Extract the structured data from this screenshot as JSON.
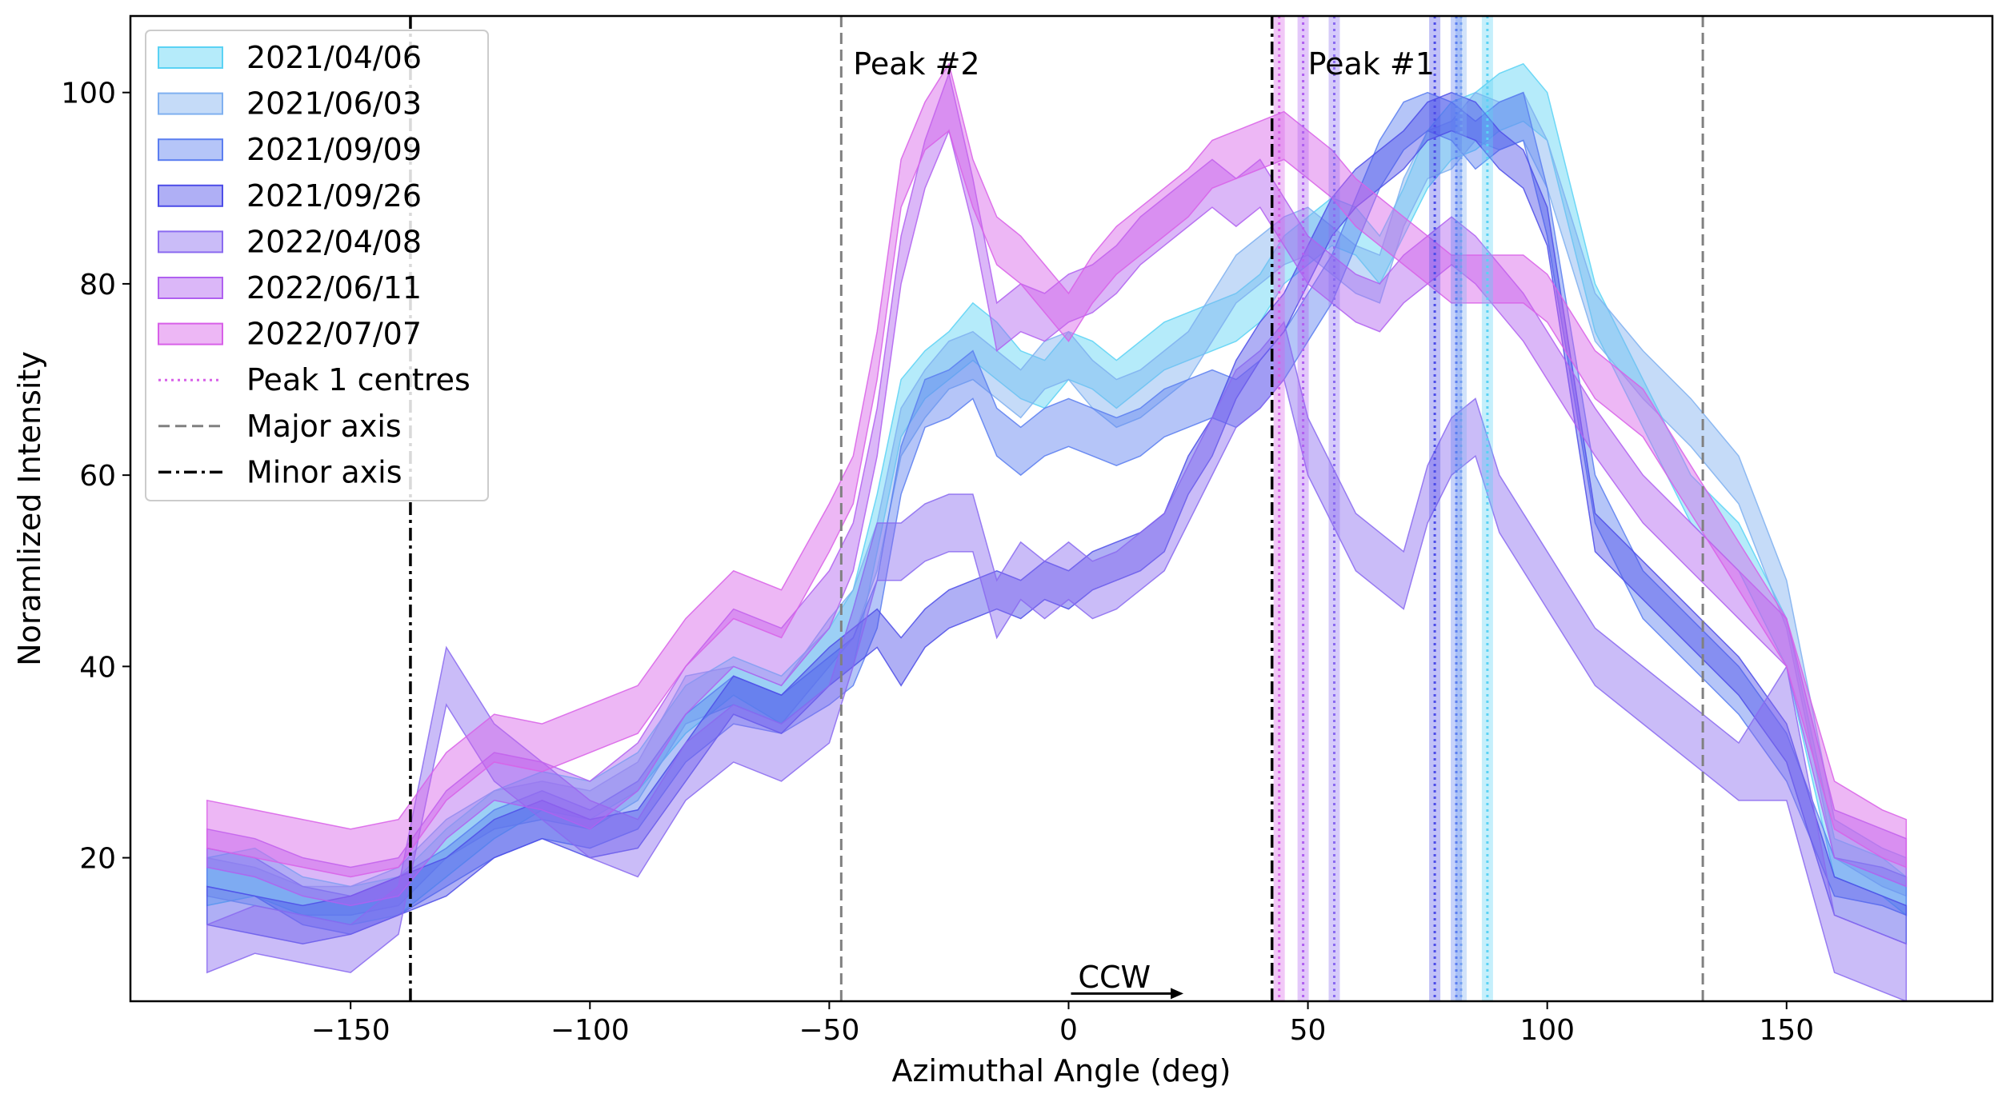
{
  "chart_data": {
    "type": "area",
    "title": "",
    "xlabel": "Azimuthal Angle (deg)",
    "ylabel": "Noramlized Intensity",
    "xlim": [
      -196,
      193
    ],
    "ylim": [
      5,
      108
    ],
    "xticks": [
      -150,
      -100,
      -50,
      0,
      50,
      100,
      150
    ],
    "yticks": [
      20,
      40,
      60,
      80,
      100
    ],
    "x": [
      -180,
      -170,
      -160,
      -150,
      -140,
      -130,
      -120,
      -110,
      -100,
      -90,
      -80,
      -70,
      -60,
      -50,
      -45,
      -40,
      -35,
      -30,
      -25,
      -20,
      -15,
      -10,
      -5,
      0,
      5,
      10,
      15,
      20,
      25,
      30,
      35,
      40,
      45,
      50,
      55,
      60,
      65,
      70,
      75,
      80,
      85,
      90,
      95,
      100,
      110,
      120,
      130,
      140,
      150,
      160,
      170,
      175
    ],
    "series": [
      {
        "name": "2021/04/06",
        "color": "#5ad2f4",
        "lower": [
          15,
          16,
          14,
          13,
          14,
          18,
          22,
          25,
          24,
          27,
          33,
          37,
          34,
          38,
          40,
          52,
          64,
          68,
          70,
          72,
          70,
          68,
          67,
          70,
          69,
          67,
          69,
          71,
          72,
          73,
          74,
          76,
          80,
          82,
          84,
          83,
          80,
          85,
          90,
          93,
          94,
          96,
          97,
          95,
          75,
          65,
          55,
          50,
          40,
          18,
          16,
          14
        ],
        "upper": [
          20,
          21,
          18,
          17,
          18,
          23,
          27,
          29,
          28,
          31,
          38,
          41,
          39,
          44,
          48,
          58,
          70,
          73,
          75,
          78,
          76,
          73,
          72,
          75,
          74,
          72,
          74,
          76,
          77,
          78,
          79,
          81,
          85,
          87,
          89,
          88,
          85,
          90,
          96,
          99,
          100,
          102,
          103,
          100,
          80,
          70,
          60,
          55,
          45,
          22,
          20,
          18
        ]
      },
      {
        "name": "2021/06/03",
        "color": "#7fb0f0",
        "lower": [
          16,
          15,
          14,
          14,
          15,
          20,
          23,
          24,
          23,
          26,
          34,
          36,
          34,
          40,
          43,
          50,
          62,
          66,
          69,
          70,
          68,
          66,
          69,
          70,
          67,
          65,
          66,
          68,
          70,
          74,
          78,
          80,
          82,
          83,
          81,
          79,
          78,
          86,
          91,
          92,
          95,
          94,
          95,
          90,
          74,
          68,
          63,
          57,
          44,
          20,
          17,
          16
        ],
        "upper": [
          20,
          19,
          17,
          17,
          19,
          24,
          27,
          28,
          27,
          30,
          39,
          40,
          38,
          45,
          48,
          55,
          67,
          71,
          74,
          75,
          73,
          71,
          74,
          75,
          72,
          70,
          71,
          73,
          75,
          79,
          83,
          85,
          87,
          88,
          86,
          84,
          83,
          91,
          96,
          97,
          100,
          99,
          100,
          95,
          79,
          73,
          68,
          62,
          49,
          24,
          21,
          20
        ]
      },
      {
        "name": "2021/09/09",
        "color": "#5b7ef0",
        "lower": [
          17,
          16,
          13,
          12,
          14,
          17,
          20,
          22,
          21,
          23,
          30,
          34,
          33,
          36,
          38,
          44,
          58,
          65,
          66,
          68,
          62,
          60,
          62,
          63,
          62,
          61,
          62,
          64,
          65,
          66,
          65,
          67,
          70,
          74,
          78,
          84,
          90,
          94,
          96,
          95,
          92,
          94,
          95,
          85,
          55,
          45,
          40,
          35,
          28,
          16,
          15,
          14
        ],
        "upper": [
          21,
          20,
          17,
          16,
          18,
          21,
          25,
          27,
          25,
          28,
          35,
          39,
          37,
          41,
          43,
          49,
          63,
          70,
          71,
          73,
          67,
          65,
          67,
          68,
          67,
          66,
          67,
          69,
          70,
          71,
          70,
          72,
          75,
          79,
          83,
          89,
          95,
          99,
          100,
          99,
          97,
          99,
          100,
          90,
          60,
          50,
          45,
          40,
          33,
          20,
          19,
          18
        ]
      },
      {
        "name": "2021/09/26",
        "color": "#4d4de8",
        "lower": [
          13,
          12,
          11,
          12,
          14,
          16,
          20,
          22,
          20,
          21,
          28,
          35,
          33,
          38,
          40,
          42,
          38,
          42,
          44,
          45,
          46,
          45,
          47,
          46,
          48,
          49,
          50,
          52,
          58,
          62,
          68,
          72,
          75,
          80,
          85,
          88,
          90,
          92,
          95,
          96,
          95,
          92,
          90,
          84,
          52,
          47,
          42,
          37,
          30,
          14,
          12,
          11
        ],
        "upper": [
          17,
          16,
          15,
          16,
          18,
          20,
          24,
          26,
          24,
          25,
          32,
          39,
          37,
          42,
          44,
          46,
          43,
          46,
          48,
          49,
          50,
          49,
          51,
          50,
          52,
          53,
          54,
          56,
          62,
          66,
          72,
          76,
          79,
          84,
          89,
          92,
          94,
          96,
          99,
          100,
          99,
          96,
          94,
          88,
          56,
          51,
          46,
          41,
          34,
          18,
          16,
          15
        ]
      },
      {
        "name": "2022/04/08",
        "color": "#8a6af0",
        "lower": [
          8,
          10,
          9,
          8,
          12,
          36,
          28,
          24,
          20,
          18,
          26,
          30,
          28,
          32,
          40,
          49,
          49,
          51,
          52,
          52,
          43,
          47,
          45,
          47,
          45,
          46,
          48,
          50,
          55,
          60,
          65,
          67,
          70,
          60,
          55,
          50,
          48,
          46,
          55,
          60,
          62,
          54,
          50,
          46,
          38,
          34,
          30,
          26,
          26,
          8,
          6,
          5
        ],
        "upper": [
          13,
          15,
          14,
          13,
          17,
          42,
          34,
          30,
          26,
          24,
          32,
          36,
          34,
          38,
          46,
          55,
          55,
          57,
          58,
          58,
          49,
          53,
          51,
          53,
          51,
          52,
          54,
          56,
          61,
          66,
          71,
          73,
          76,
          66,
          61,
          56,
          54,
          52,
          61,
          66,
          68,
          60,
          56,
          52,
          44,
          40,
          36,
          32,
          40,
          14,
          12,
          11
        ]
      },
      {
        "name": "2022/06/11",
        "color": "#b060f0",
        "lower": [
          19,
          18,
          16,
          15,
          16,
          22,
          26,
          25,
          23,
          27,
          35,
          40,
          38,
          44,
          50,
          62,
          80,
          90,
          96,
          86,
          73,
          75,
          74,
          76,
          77,
          79,
          82,
          84,
          86,
          88,
          86,
          88,
          84,
          80,
          78,
          76,
          75,
          78,
          80,
          82,
          80,
          77,
          74,
          70,
          62,
          55,
          50,
          45,
          40,
          20,
          18,
          17
        ],
        "upper": [
          23,
          22,
          20,
          19,
          20,
          27,
          31,
          30,
          28,
          32,
          40,
          46,
          44,
          50,
          55,
          67,
          85,
          95,
          102,
          91,
          78,
          80,
          79,
          81,
          82,
          84,
          87,
          89,
          91,
          93,
          91,
          93,
          89,
          85,
          83,
          81,
          80,
          83,
          85,
          87,
          85,
          82,
          79,
          75,
          67,
          60,
          55,
          50,
          45,
          25,
          23,
          22
        ]
      },
      {
        "name": "2022/07/07",
        "color": "#d860e8",
        "lower": [
          21,
          20,
          19,
          18,
          19,
          26,
          30,
          29,
          31,
          33,
          40,
          45,
          43,
          52,
          57,
          70,
          88,
          94,
          96,
          88,
          82,
          80,
          77,
          74,
          78,
          81,
          83,
          85,
          87,
          90,
          91,
          92,
          93,
          91,
          89,
          86,
          84,
          82,
          80,
          78,
          78,
          78,
          78,
          76,
          68,
          64,
          56,
          48,
          40,
          23,
          20,
          19
        ],
        "upper": [
          26,
          25,
          24,
          23,
          24,
          31,
          35,
          34,
          36,
          38,
          45,
          50,
          48,
          57,
          62,
          75,
          93,
          99,
          103,
          93,
          87,
          85,
          82,
          79,
          83,
          86,
          88,
          90,
          92,
          95,
          96,
          97,
          98,
          96,
          94,
          91,
          89,
          87,
          85,
          83,
          83,
          83,
          83,
          81,
          73,
          69,
          61,
          53,
          45,
          28,
          25,
          24
        ]
      }
    ],
    "peak1_centres": [
      {
        "date": "2021/04/06",
        "x": 87.5,
        "color": "#5ad2f4"
      },
      {
        "date": "2021/06/03",
        "x": 82,
        "color": "#7fb0f0"
      },
      {
        "date": "2021/09/09",
        "x": 81,
        "color": "#5b7ef0"
      },
      {
        "date": "2021/09/26",
        "x": 76.5,
        "color": "#4d4de8"
      },
      {
        "date": "2022/04/08",
        "x": 55.5,
        "color": "#8a6af0"
      },
      {
        "date": "2022/06/11",
        "x": 49,
        "color": "#b060f0"
      },
      {
        "date": "2022/07/07",
        "x": 44,
        "color": "#d860e8"
      }
    ],
    "major_axis": [
      -47.5,
      132.5
    ],
    "minor_axis": [
      -137.5,
      42.5
    ],
    "annotations": [
      {
        "text": "Peak #2",
        "x": -45,
        "y": 103
      },
      {
        "text": "Peak #1",
        "x": 50,
        "y": 103
      },
      {
        "text": "CCW",
        "x": 2,
        "y": 7.5
      }
    ],
    "legend": {
      "position": "top-left",
      "entries": [
        "2021/04/06",
        "2021/06/03",
        "2021/09/09",
        "2021/09/26",
        "2022/04/08",
        "2022/06/11",
        "2022/07/07",
        "Peak 1 centres",
        "Major axis",
        "Minor axis"
      ]
    }
  }
}
